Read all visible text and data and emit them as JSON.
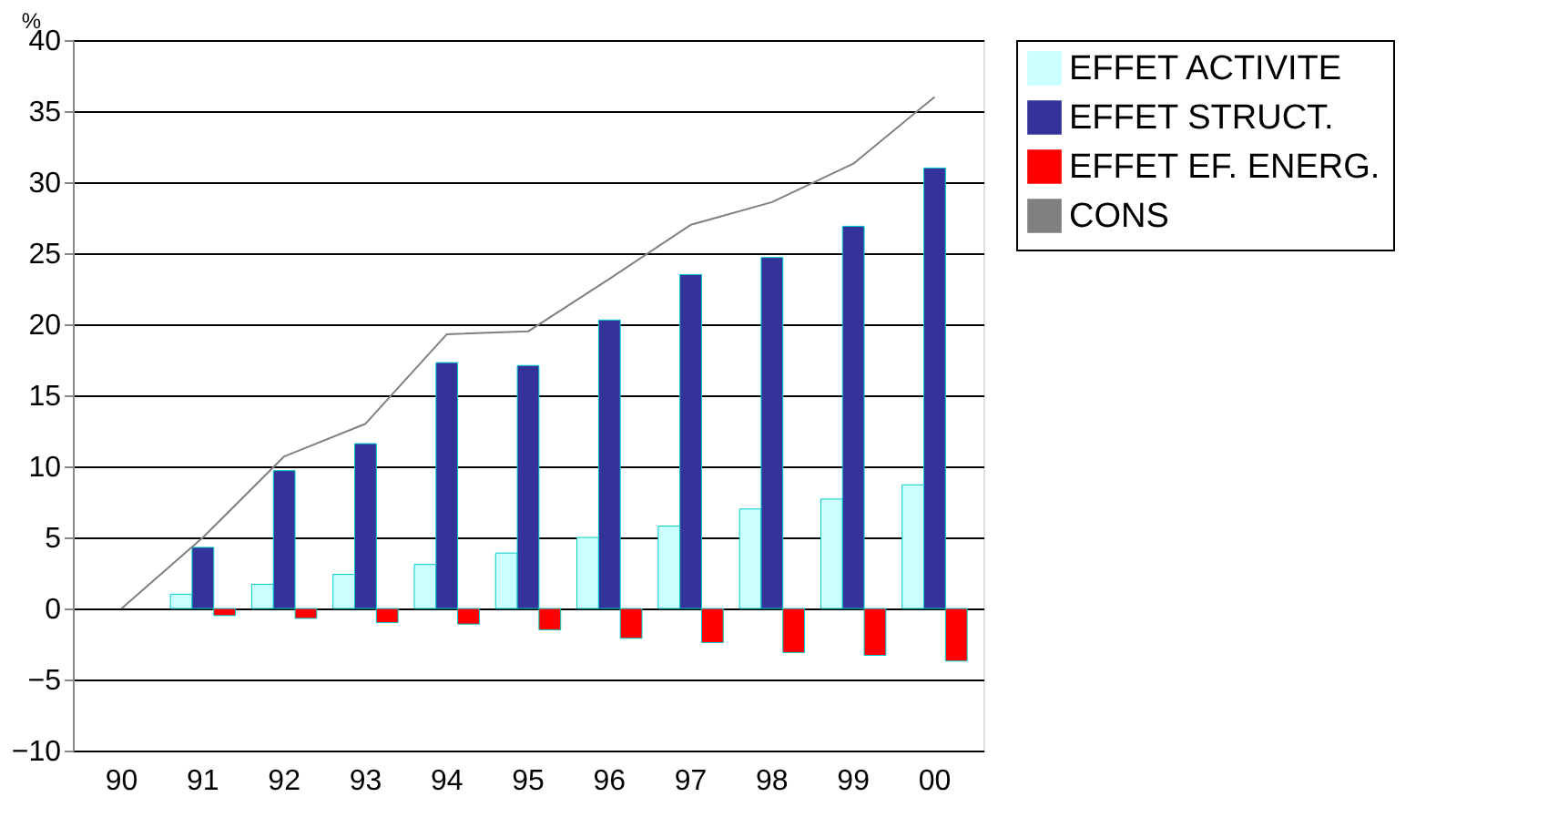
{
  "chart_data": {
    "type": "bar",
    "ylabel": "%",
    "categories": [
      "90",
      "91",
      "92",
      "93",
      "94",
      "95",
      "96",
      "97",
      "98",
      "99",
      "00"
    ],
    "series": [
      {
        "name": "EFFET ACTIVITE",
        "color": "#ccffff",
        "values": [
          0,
          1.0,
          1.7,
          2.4,
          3.1,
          3.9,
          5.0,
          5.8,
          7.0,
          7.7,
          8.7
        ]
      },
      {
        "name": "EFFET STRUCT.",
        "color": "#333399",
        "values": [
          0,
          4.3,
          9.7,
          11.6,
          17.3,
          17.1,
          20.3,
          23.5,
          24.7,
          26.9,
          31.0
        ]
      },
      {
        "name": "EFFET EF. ENERG.",
        "color": "#ff0000",
        "values": [
          0,
          -0.5,
          -0.7,
          -1.0,
          -1.1,
          -1.5,
          -2.1,
          -2.4,
          -3.1,
          -3.3,
          -3.7
        ]
      },
      {
        "name": "CONS",
        "type": "line",
        "color": "#808080",
        "values": [
          0,
          5,
          10.7,
          13,
          19.3,
          19.5,
          23.2,
          27,
          28.6,
          31.3,
          36
        ]
      }
    ],
    "ylim": [
      -10,
      40
    ],
    "yticks": [
      -10,
      -5,
      0,
      5,
      10,
      15,
      20,
      25,
      30,
      35,
      40
    ],
    "grid": "y",
    "legend": "right"
  }
}
